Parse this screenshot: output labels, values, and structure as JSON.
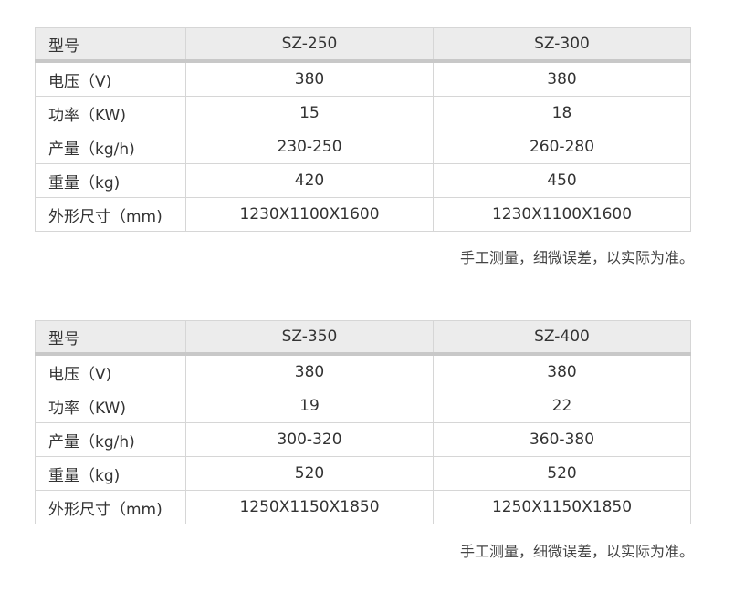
{
  "tables": [
    {
      "header": [
        "型号",
        "SZ-250",
        "SZ-300"
      ],
      "rows": [
        [
          "电压（V)",
          "380",
          "380"
        ],
        [
          "功率（KW)",
          "15",
          "18"
        ],
        [
          "产量（kg/h)",
          "230-250",
          "260-280"
        ],
        [
          "重量（kg)",
          "420",
          "450"
        ],
        [
          "外形尺寸（mm)",
          "1230X1100X1600",
          "1230X1100X1600"
        ]
      ],
      "note": "手工测量，细微误差，以实际为准。"
    },
    {
      "header": [
        "型号",
        "SZ-350",
        "SZ-400"
      ],
      "rows": [
        [
          "电压（V)",
          "380",
          "380"
        ],
        [
          "功率（KW)",
          "19",
          "22"
        ],
        [
          "产量（kg/h)",
          "300-320",
          "360-380"
        ],
        [
          "重量（kg)",
          "520",
          "520"
        ],
        [
          "外形尺寸（mm)",
          "1250X1150X1850",
          "1250X1150X1850"
        ]
      ],
      "note": "手工测量，细微误差，以实际为准。"
    }
  ],
  "colors": {
    "header_bg": "#ececec",
    "header_border": "#c8c8c8",
    "grid": "#d6d6d6",
    "text": "#333333"
  }
}
